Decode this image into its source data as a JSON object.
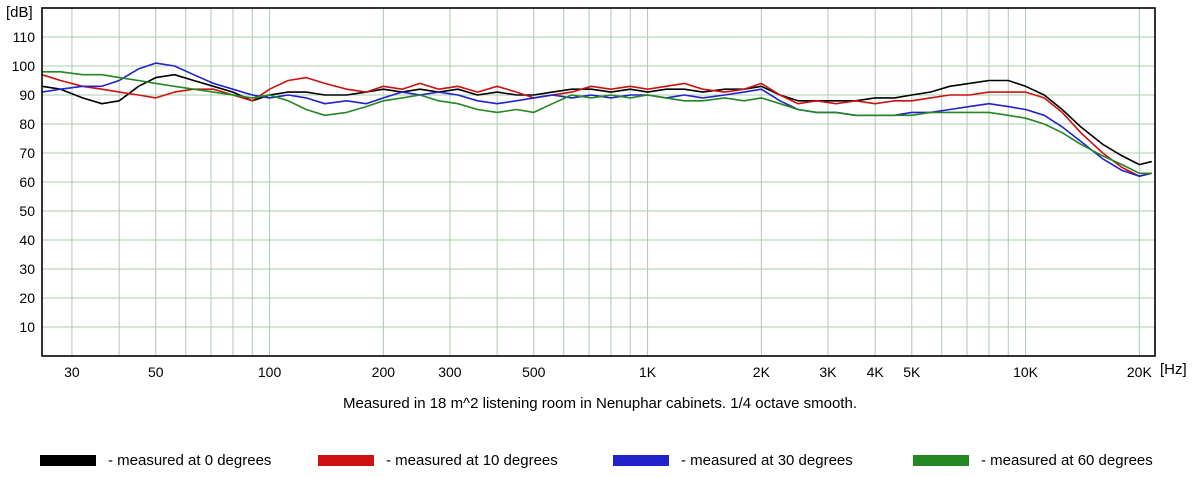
{
  "caption": "Measured in 18 m^2 listening room in Nenuphar cabinets. 1/4 octave smooth.",
  "chart_data": {
    "type": "line",
    "title": "",
    "xlabel": "[Hz]",
    "ylabel": "[dB]",
    "x_scale": "log",
    "xlim": [
      25,
      22000
    ],
    "ylim": [
      0,
      120
    ],
    "grid": true,
    "grid_color": "#aaccaa",
    "border_color": "#000000",
    "background_color": "#ffffff",
    "y_ticks": [
      10,
      20,
      30,
      40,
      50,
      60,
      70,
      80,
      90,
      100,
      110
    ],
    "x_ticks": [
      {
        "v": 30,
        "l": "30"
      },
      {
        "v": 50,
        "l": "50"
      },
      {
        "v": 100,
        "l": "100"
      },
      {
        "v": 200,
        "l": "200"
      },
      {
        "v": 300,
        "l": "300"
      },
      {
        "v": 500,
        "l": "500"
      },
      {
        "v": 1000,
        "l": "1K"
      },
      {
        "v": 2000,
        "l": "2K"
      },
      {
        "v": 3000,
        "l": "3K"
      },
      {
        "v": 4000,
        "l": "4K"
      },
      {
        "v": 5000,
        "l": "5K"
      },
      {
        "v": 10000,
        "l": "10K"
      },
      {
        "v": 20000,
        "l": "20K"
      }
    ],
    "x_grid": [
      30,
      40,
      50,
      60,
      70,
      80,
      90,
      100,
      200,
      300,
      400,
      500,
      600,
      700,
      800,
      900,
      1000,
      2000,
      3000,
      4000,
      5000,
      6000,
      7000,
      8000,
      9000,
      10000,
      20000
    ],
    "x": [
      25,
      28,
      32,
      36,
      40,
      45,
      50,
      56,
      63,
      71,
      80,
      90,
      100,
      112,
      125,
      140,
      160,
      180,
      200,
      224,
      250,
      280,
      315,
      355,
      400,
      450,
      500,
      560,
      630,
      710,
      800,
      900,
      1000,
      1120,
      1250,
      1400,
      1600,
      1800,
      2000,
      2240,
      2500,
      2800,
      3150,
      3550,
      4000,
      4500,
      5000,
      5600,
      6300,
      7100,
      8000,
      9000,
      10000,
      11200,
      12500,
      14000,
      16000,
      18000,
      20000,
      21500
    ],
    "series": [
      {
        "name": "measured at 0 degrees",
        "legend_label": "- measured at 0 degrees",
        "color": "#000000",
        "values": [
          93,
          92,
          89,
          87,
          88,
          93,
          96,
          97,
          95,
          93,
          91,
          88,
          90,
          91,
          91,
          90,
          90,
          91,
          92,
          91,
          92,
          91,
          92,
          90,
          91,
          90,
          90,
          91,
          92,
          92,
          91,
          92,
          91,
          92,
          92,
          91,
          92,
          92,
          93,
          90,
          88,
          88,
          88,
          88,
          89,
          89,
          90,
          91,
          93,
          94,
          95,
          95,
          93,
          90,
          85,
          79,
          73,
          69,
          66,
          67
        ]
      },
      {
        "name": "measured at 10 degrees",
        "legend_label": "- measured at 10 degrees",
        "color": "#cc1111",
        "values": [
          97,
          95,
          93,
          92,
          91,
          90,
          89,
          91,
          92,
          92,
          90,
          88,
          92,
          95,
          96,
          94,
          92,
          91,
          93,
          92,
          94,
          92,
          93,
          91,
          93,
          91,
          89,
          90,
          91,
          93,
          92,
          93,
          92,
          93,
          94,
          92,
          91,
          92,
          94,
          90,
          87,
          88,
          87,
          88,
          87,
          88,
          88,
          89,
          90,
          90,
          91,
          91,
          91,
          89,
          84,
          77,
          70,
          65,
          62,
          63
        ]
      },
      {
        "name": "measured at 30 degrees",
        "legend_label": "- measured at 30 degrees",
        "color": "#2222cc",
        "values": [
          91,
          92,
          93,
          93,
          95,
          99,
          101,
          100,
          97,
          94,
          92,
          90,
          89,
          90,
          89,
          87,
          88,
          87,
          89,
          91,
          90,
          91,
          90,
          88,
          87,
          88,
          89,
          90,
          89,
          90,
          89,
          90,
          90,
          89,
          90,
          89,
          90,
          91,
          92,
          88,
          85,
          84,
          84,
          83,
          83,
          83,
          84,
          84,
          85,
          86,
          87,
          86,
          85,
          83,
          79,
          74,
          68,
          64,
          62,
          63
        ]
      },
      {
        "name": "measured at 60 degrees",
        "legend_label": "- measured at 60 degrees",
        "color": "#238823",
        "values": [
          98,
          98,
          97,
          97,
          96,
          95,
          94,
          93,
          92,
          91,
          90,
          89,
          90,
          88,
          85,
          83,
          84,
          86,
          88,
          89,
          90,
          88,
          87,
          85,
          84,
          85,
          84,
          87,
          90,
          89,
          90,
          89,
          90,
          89,
          88,
          88,
          89,
          88,
          89,
          87,
          85,
          84,
          84,
          83,
          83,
          83,
          83,
          84,
          84,
          84,
          84,
          83,
          82,
          80,
          77,
          73,
          69,
          66,
          63,
          63
        ]
      }
    ]
  }
}
